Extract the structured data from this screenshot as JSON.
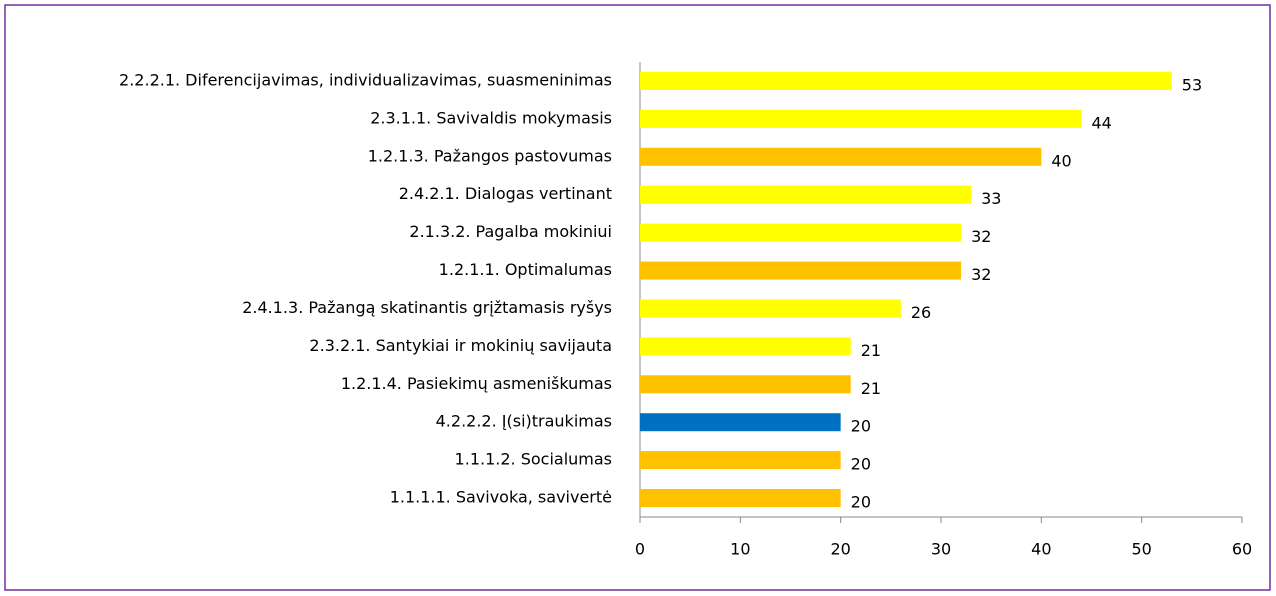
{
  "chart_data": {
    "type": "barh",
    "categories": [
      "2.2.2.1. Diferencijavimas, individualizavimas, suasmeninimas",
      "2.3.1.1. Savivaldis mokymasis",
      "1.2.1.3. Pažangos pastovumas",
      "2.4.2.1. Dialogas vertinant",
      "2.1.3.2. Pagalba mokiniui",
      "1.2.1.1. Optimalumas",
      "2.4.1.3. Pažangą skatinantis grįžtamasis ryšys",
      "2.3.2.1. Santykiai ir mokinių savijauta",
      "1.2.1.4. Pasiekimų asmeniškumas",
      "4.2.2.2. Į(si)traukimas",
      "1.1.1.2. Socialumas",
      "1.1.1.1. Savivoka, savivertė"
    ],
    "values": [
      53,
      44,
      40,
      33,
      32,
      32,
      26,
      21,
      21,
      20,
      20,
      20
    ],
    "colors": [
      "#ffff00",
      "#ffff00",
      "#ffc000",
      "#ffff00",
      "#ffff00",
      "#ffc000",
      "#ffff00",
      "#ffff00",
      "#ffc000",
      "#0070c0",
      "#ffc000",
      "#ffc000"
    ],
    "xlim": [
      0,
      60
    ],
    "xticks": [
      0,
      10,
      20,
      30,
      40,
      50,
      60
    ],
    "grid": false
  }
}
